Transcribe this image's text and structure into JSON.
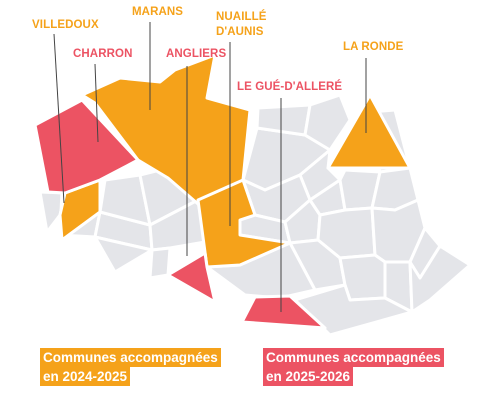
{
  "colors": {
    "orange": "#f5a21a",
    "red": "#ec5363",
    "grey": "#e4e5e9",
    "border": "#ffffff",
    "leader": "#444444"
  },
  "communes": {
    "villedoux": {
      "name": "VILLEDOUX",
      "group": "2024-2025"
    },
    "charron": {
      "name": "CHARRON",
      "group": "2025-2026"
    },
    "marans": {
      "name": "MARANS",
      "group": "2024-2025"
    },
    "nuaille_line1": "NUAILLÉ",
    "nuaille_line2": "D'AUNIS",
    "nuaille_group": "2024-2025",
    "angliers": {
      "name": "ANGLIERS",
      "group": "2025-2026"
    },
    "le_gue": {
      "name": "LE GUÉ-D'ALLERÉ",
      "group": "2025-2026"
    },
    "la_ronde": {
      "name": "LA RONDE",
      "group": "2024-2025"
    }
  },
  "legend": {
    "item1_line1": "Communes accompagnées",
    "item1_line2": "en 2024-2025",
    "item2_line1": "Communes accompagnées",
    "item2_line2": "en 2025-2026"
  }
}
